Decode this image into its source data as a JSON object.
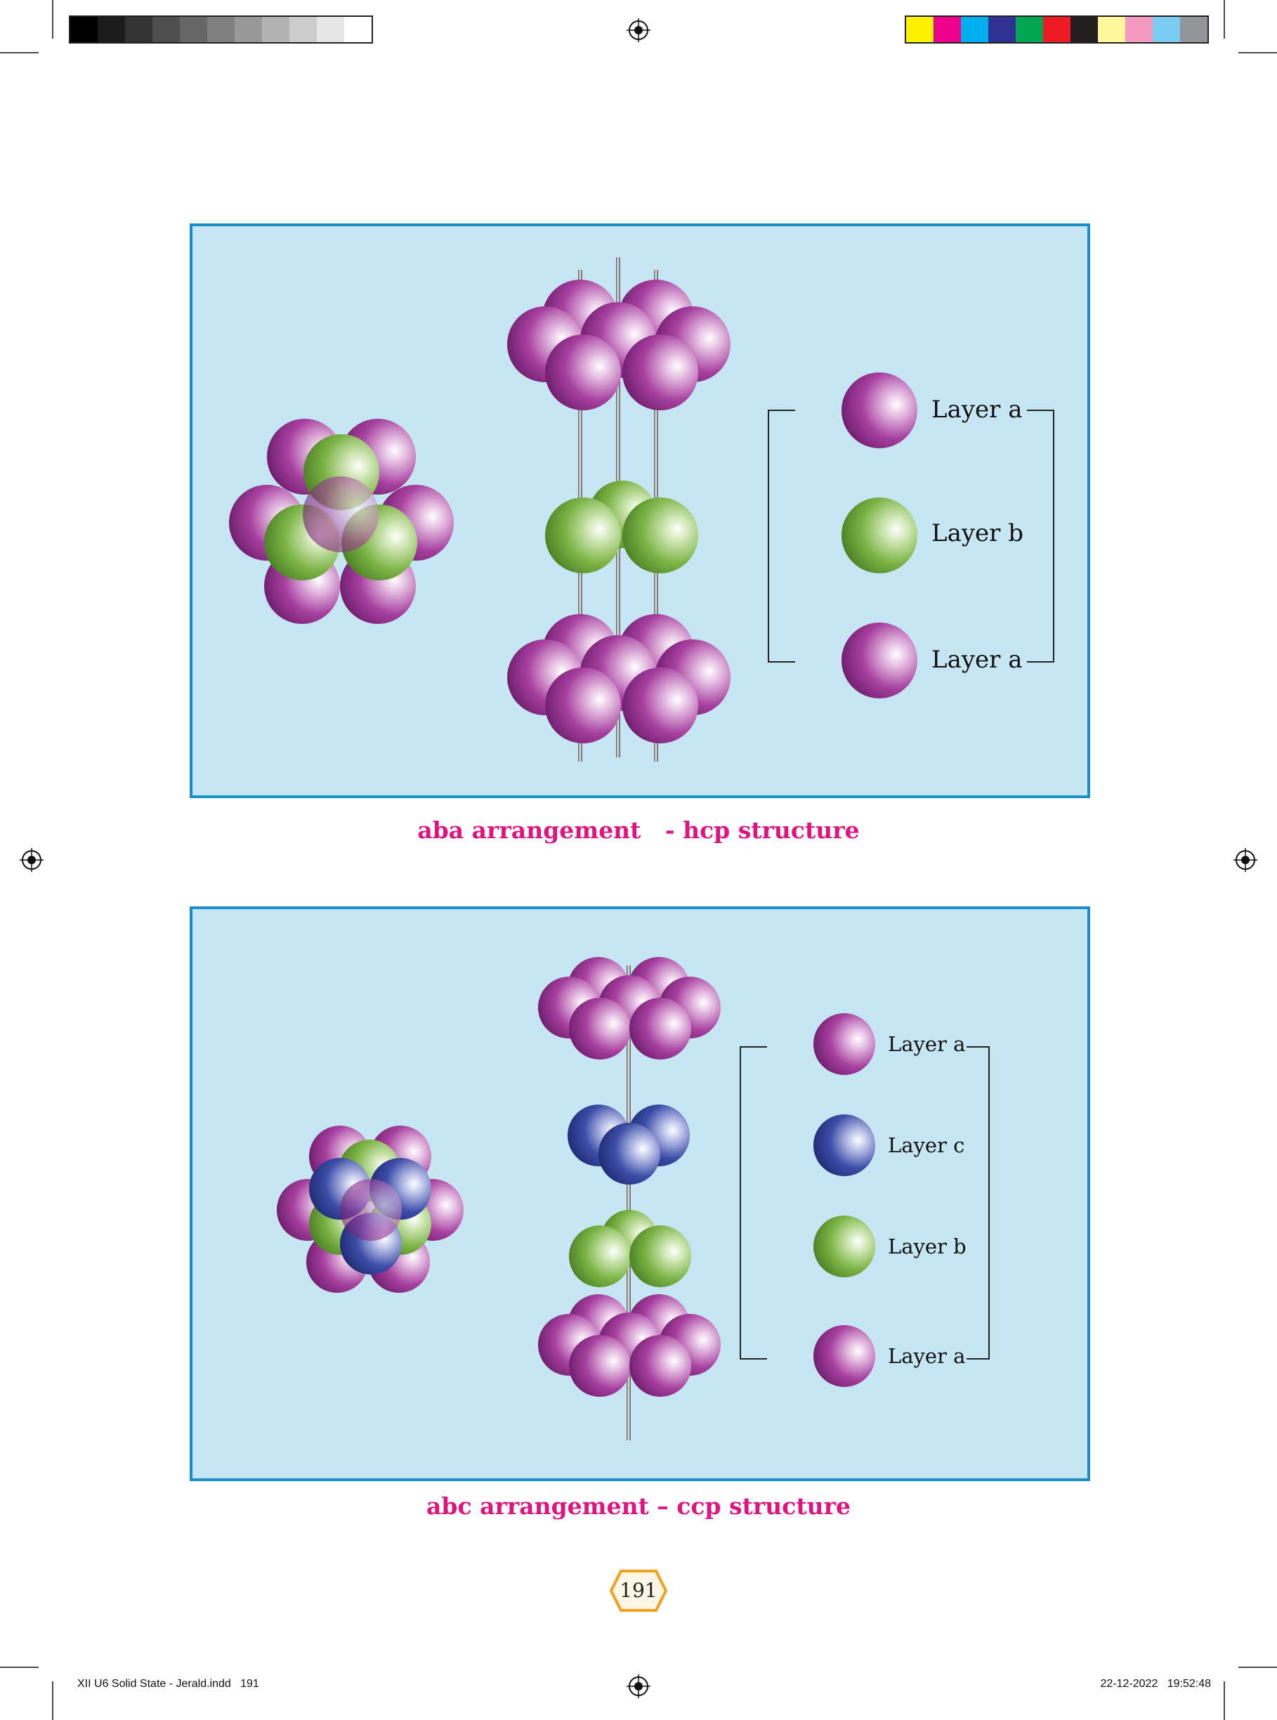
{
  "figures": [
    {
      "caption": "aba arrangement   - hcp structure",
      "legend": [
        "Layer a",
        "Layer b",
        "Layer a"
      ]
    },
    {
      "caption": "abc arrangement – ccp structure",
      "legend": [
        "Layer a",
        "Layer c",
        "Layer b",
        "Layer a"
      ]
    }
  ],
  "page_number": "191",
  "footer": {
    "file": "XII U6 Solid State - Jerald.indd   191",
    "timestamp": "22-12-2022   19:52:48"
  },
  "colors": {
    "layer_a": "#9b2b97",
    "layer_b": "#6aa83c",
    "layer_c": "#2f3f9a",
    "caption": "#e0147f",
    "panel_bg": "#c5e6f2",
    "panel_border": "#1b8ec9"
  }
}
